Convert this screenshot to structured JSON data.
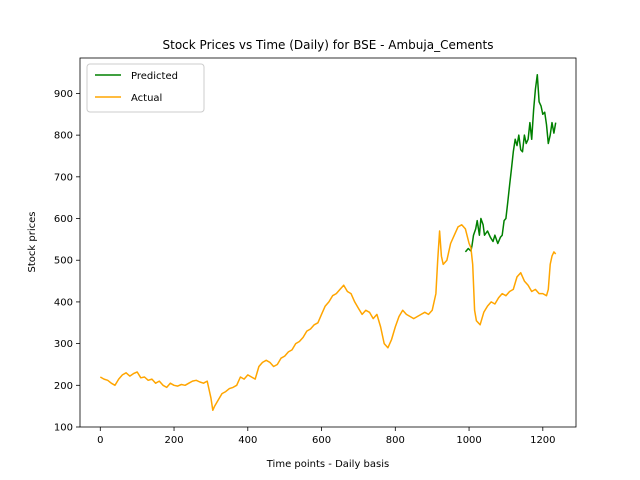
{
  "chart_data": {
    "type": "line",
    "title": "Stock Prices vs Time (Daily) for BSE - Ambuja_Cements",
    "xlabel": "Time points - Daily basis",
    "ylabel": "Stock prices",
    "xlim": [
      -55,
      1290
    ],
    "ylim": [
      100,
      985
    ],
    "x_ticks": [
      0,
      200,
      400,
      600,
      800,
      1000,
      1200
    ],
    "y_ticks": [
      100,
      200,
      300,
      400,
      500,
      600,
      700,
      800,
      900
    ],
    "grid": false,
    "legend_position": "top-left",
    "series": [
      {
        "name": "Predicted",
        "color": "#008000",
        "x": [
          990,
          998,
          1005,
          1008,
          1012,
          1018,
          1022,
          1028,
          1032,
          1038,
          1042,
          1050,
          1058,
          1065,
          1070,
          1078,
          1085,
          1090,
          1095,
          1100,
          1105,
          1110,
          1115,
          1120,
          1125,
          1130,
          1135,
          1140,
          1145,
          1150,
          1155,
          1160,
          1165,
          1170,
          1175,
          1180,
          1185,
          1190,
          1195,
          1200,
          1205,
          1210,
          1215,
          1220,
          1225,
          1230,
          1235
        ],
        "values": [
          520,
          528,
          522,
          535,
          560,
          575,
          595,
          560,
          600,
          585,
          560,
          570,
          555,
          545,
          560,
          540,
          555,
          560,
          595,
          600,
          640,
          680,
          720,
          760,
          790,
          775,
          800,
          765,
          760,
          800,
          780,
          790,
          830,
          790,
          860,
          910,
          945,
          880,
          870,
          850,
          855,
          825,
          780,
          800,
          830,
          805,
          830
        ]
      },
      {
        "name": "Actual",
        "color": "#ffa500",
        "x": [
          0,
          10,
          20,
          30,
          40,
          50,
          60,
          70,
          80,
          90,
          100,
          110,
          120,
          130,
          140,
          150,
          160,
          170,
          180,
          190,
          200,
          210,
          220,
          230,
          240,
          250,
          260,
          270,
          280,
          290,
          300,
          305,
          310,
          320,
          330,
          340,
          350,
          360,
          370,
          380,
          390,
          400,
          410,
          420,
          430,
          440,
          450,
          460,
          470,
          480,
          490,
          500,
          510,
          520,
          530,
          540,
          550,
          560,
          570,
          580,
          590,
          600,
          610,
          620,
          630,
          640,
          650,
          660,
          670,
          680,
          690,
          700,
          710,
          720,
          730,
          740,
          750,
          760,
          770,
          780,
          790,
          800,
          810,
          820,
          830,
          840,
          850,
          860,
          870,
          880,
          890,
          900,
          910,
          915,
          920,
          925,
          930,
          940,
          950,
          960,
          970,
          980,
          990,
          1000,
          1005,
          1010,
          1015,
          1020,
          1030,
          1040,
          1050,
          1060,
          1070,
          1080,
          1090,
          1100,
          1110,
          1120,
          1130,
          1140,
          1150,
          1160,
          1170,
          1180,
          1190,
          1200,
          1210,
          1215,
          1220,
          1225,
          1230,
          1235
        ],
        "values": [
          220,
          215,
          212,
          205,
          200,
          215,
          225,
          230,
          222,
          228,
          232,
          218,
          220,
          212,
          215,
          205,
          210,
          200,
          195,
          205,
          200,
          198,
          202,
          200,
          205,
          210,
          212,
          208,
          205,
          210,
          170,
          140,
          150,
          165,
          180,
          185,
          192,
          195,
          200,
          220,
          215,
          225,
          220,
          215,
          245,
          255,
          260,
          255,
          245,
          250,
          265,
          270,
          280,
          285,
          300,
          305,
          315,
          330,
          335,
          345,
          350,
          370,
          390,
          400,
          415,
          420,
          430,
          440,
          425,
          420,
          400,
          385,
          370,
          380,
          375,
          360,
          370,
          340,
          300,
          290,
          310,
          340,
          365,
          380,
          370,
          365,
          360,
          365,
          370,
          375,
          370,
          380,
          420,
          500,
          570,
          510,
          490,
          500,
          540,
          560,
          580,
          585,
          575,
          540,
          530,
          490,
          380,
          355,
          345,
          375,
          390,
          400,
          395,
          410,
          420,
          415,
          425,
          430,
          460,
          470,
          450,
          440,
          425,
          430,
          420,
          420,
          415,
          430,
          490,
          510,
          520,
          515
        ]
      }
    ]
  }
}
